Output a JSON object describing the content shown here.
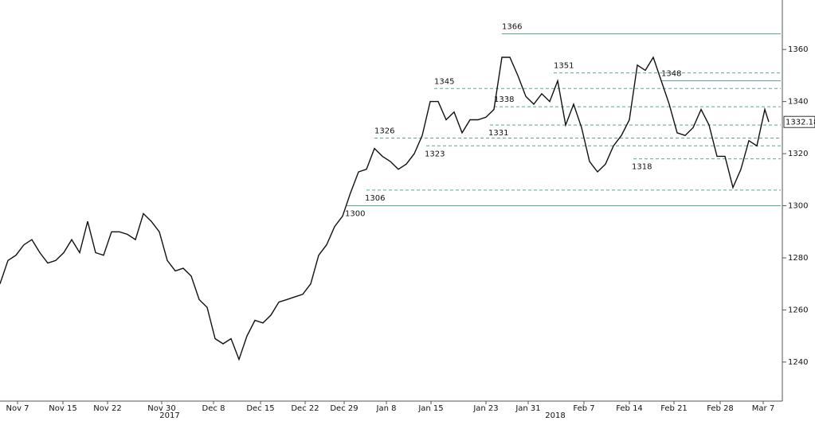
{
  "chart_data": {
    "type": "line",
    "x": [
      0,
      1,
      2,
      3,
      4,
      5,
      6,
      7,
      8,
      9,
      10,
      11,
      12,
      13,
      14,
      15,
      16,
      17,
      18,
      19,
      20,
      21,
      22,
      23,
      24,
      25,
      26,
      27,
      28,
      29,
      30,
      31,
      32,
      33,
      34,
      35,
      36,
      37,
      38,
      39,
      40,
      41,
      42,
      43,
      44,
      45,
      46,
      47,
      48,
      49,
      50,
      51,
      52,
      53,
      54,
      55,
      56,
      57,
      58,
      59,
      60,
      61,
      62,
      63,
      64,
      65,
      66,
      67,
      68,
      69,
      70,
      71,
      72,
      73,
      74,
      75,
      76,
      77,
      78,
      79,
      80,
      81,
      82,
      83,
      84,
      85,
      86,
      87,
      88,
      89,
      90,
      91,
      92,
      93,
      94,
      95,
      96,
      96.5
    ],
    "series": [
      {
        "color": "#111111",
        "values": [
          1270,
          1279,
          1281,
          1285,
          1287,
          1282,
          1278,
          1279,
          1282,
          1287,
          1282,
          1294,
          1282,
          1281,
          1290,
          1290,
          1289,
          1287,
          1297,
          1294,
          1290,
          1279,
          1275,
          1276,
          1273,
          1264,
          1261,
          1249,
          1247,
          1249,
          1241,
          1250,
          1256,
          1255,
          1258,
          1263,
          1264,
          1265,
          1266,
          1270,
          1281,
          1285,
          1292,
          1296,
          1305,
          1313,
          1314,
          1322,
          1319,
          1317,
          1314,
          1316,
          1320,
          1327,
          1340,
          1340,
          1333,
          1336,
          1328,
          1333,
          1333,
          1334,
          1337,
          1357,
          1357,
          1350,
          1342,
          1339,
          1343,
          1340,
          1348,
          1331,
          1339,
          1330,
          1317,
          1313,
          1316,
          1323,
          1327,
          1333,
          1354,
          1352,
          1357,
          1348,
          1339,
          1328,
          1327,
          1330,
          1337,
          1331,
          1319,
          1319,
          1307,
          1314,
          1325,
          1323,
          1337,
          1332.18
        ]
      }
    ],
    "last_value": 1332.18,
    "levels": [
      1366,
      1351,
      1348,
      1345,
      1338,
      1331,
      1326,
      1323,
      1318,
      1306,
      1300
    ],
    "xlim": [
      0,
      98
    ],
    "ylim": [
      1225,
      1379
    ],
    "yticks": [
      1240,
      1260,
      1280,
      1300,
      1320,
      1340,
      1360
    ],
    "xticks": [
      {
        "value": 2.2,
        "label": "Nov 7"
      },
      {
        "value": 7.9,
        "label": "Nov 15"
      },
      {
        "value": 13.5,
        "label": "Nov 22"
      },
      {
        "value": 20.3,
        "label": "Nov 30"
      },
      {
        "value": 26.8,
        "label": "Dec 8"
      },
      {
        "value": 32.7,
        "label": "Dec 15"
      },
      {
        "value": 38.3,
        "label": "Dec 22"
      },
      {
        "value": 43.2,
        "label": "Dec 29"
      },
      {
        "value": 48.5,
        "label": "Jan 8"
      },
      {
        "value": 54.1,
        "label": "Jan 15"
      },
      {
        "value": 61,
        "label": "Jan 23"
      },
      {
        "value": 66.3,
        "label": "Jan 31"
      },
      {
        "value": 73.3,
        "label": "Feb 7"
      },
      {
        "value": 79,
        "label": "Feb 14"
      },
      {
        "value": 84.6,
        "label": "Feb 21"
      },
      {
        "value": 90.4,
        "label": "Feb 28"
      },
      {
        "value": 95.8,
        "label": "Mar 7"
      }
    ],
    "year_labels": [
      {
        "value": 21.3,
        "label": "2017"
      },
      {
        "value": 69.7,
        "label": "2018"
      }
    ],
    "level_color": "#5aa79a"
  }
}
